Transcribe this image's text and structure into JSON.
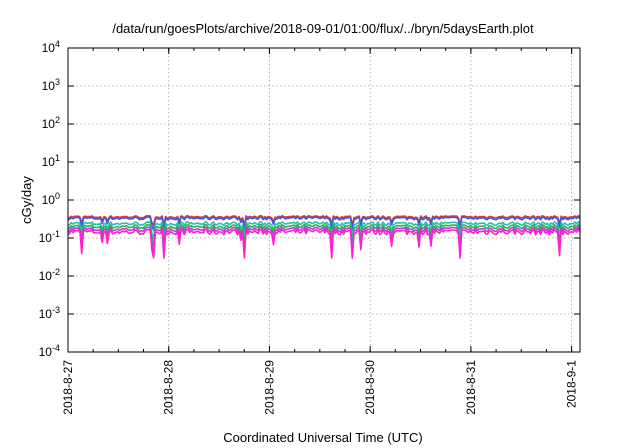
{
  "chart_data": {
    "type": "line",
    "title": "/data/run/goesPlots/archive/2018-09-01/01:00/flux/../bryn/5daysEarth.plot",
    "xlabel": "Coordinated Universal Time (UTC)",
    "ylabel": "cGy/day",
    "yscale": "log",
    "ylim": [
      0.0001,
      10000
    ],
    "xlim": [
      "2018-08-27",
      "2018-09-01 02:00"
    ],
    "x_ticks": [
      "2018-8-27",
      "2018-8-28",
      "2018-8-29",
      "2018-8-30",
      "2018-8-31",
      "2018-9-1"
    ],
    "y_ticks": [
      {
        "base": "10",
        "exp": "-4"
      },
      {
        "base": "10",
        "exp": "-3"
      },
      {
        "base": "10",
        "exp": "-2"
      },
      {
        "base": "10",
        "exp": "-1"
      },
      {
        "base": "10",
        "exp": "0"
      },
      {
        "base": "10",
        "exp": "1"
      },
      {
        "base": "10",
        "exp": "2"
      },
      {
        "base": "10",
        "exp": "3"
      },
      {
        "base": "10",
        "exp": "4"
      }
    ],
    "grid": true,
    "series": [
      {
        "color": "#e8352f",
        "base": 0.36
      },
      {
        "color": "#3a5bd9",
        "base": 0.33
      },
      {
        "color": "#23c2b0",
        "base": 0.24
      },
      {
        "color": "#2bb24c",
        "base": 0.2
      },
      {
        "color": "#c13ad6",
        "base": 0.17
      },
      {
        "color": "#ff1fd2",
        "base": 0.145
      }
    ]
  }
}
